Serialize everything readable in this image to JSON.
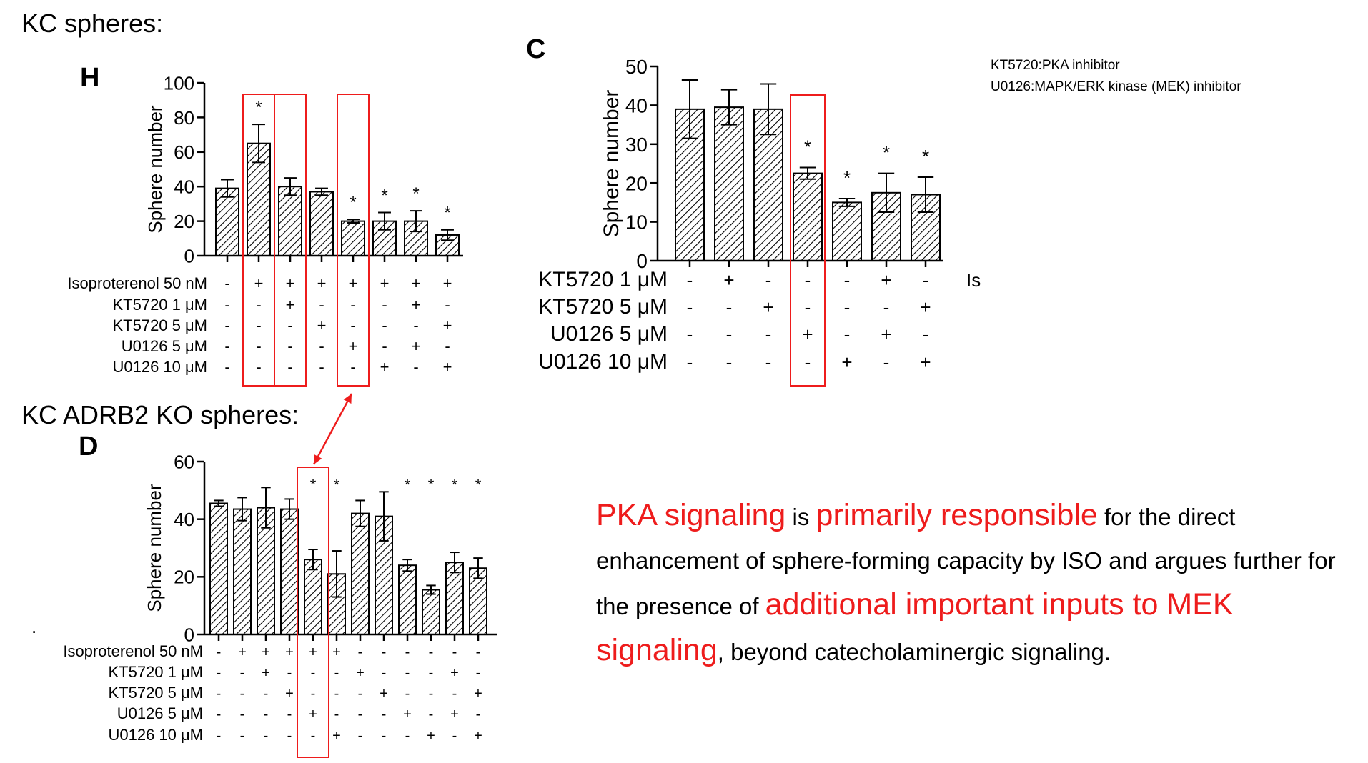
{
  "headings": {
    "kc_spheres": "KC spheres:",
    "kc_adrb2_ko_spheres": "KC ADRB2 KO spheres:",
    "dot": "."
  },
  "notes": {
    "kt5720": "KT5720:PKA inhibitor",
    "u0126": "U0126:MAPK/ERK kinase (MEK) inhibitor"
  },
  "summary": {
    "p1": "PKA signaling",
    "p2": " is ",
    "p3": "primarily responsible",
    "p4": " for the direct enhancement of sphere-forming capacity by ISO and argues further for the presence of ",
    "p5": "additional important inputs to MEK signaling",
    "p6": ", beyond catecholaminergic signaling."
  },
  "colors": {
    "highlight": "#ee1c1c",
    "bars": "#000000",
    "background": "#ffffff"
  },
  "chart_data": [
    {
      "panel": "H",
      "type": "bar",
      "ylabel": "Sphere number",
      "ylim": [
        0,
        100
      ],
      "yticks": [
        0,
        20,
        40,
        60,
        80,
        100
      ],
      "values": [
        39,
        65,
        40,
        37,
        20,
        20,
        20,
        12
      ],
      "errors": [
        5,
        11,
        5,
        2,
        1,
        5,
        6,
        3
      ],
      "significance": [
        "",
        "*",
        "",
        "",
        "*",
        "*",
        "*",
        "*"
      ],
      "conditions": [
        {
          "label": "Isoproterenol 50 nM",
          "signs": [
            "-",
            "+",
            "+",
            "+",
            "+",
            "+",
            "+",
            "+"
          ]
        },
        {
          "label": "KT5720 1 μM",
          "signs": [
            "-",
            "-",
            "+",
            "-",
            "-",
            "-",
            "+",
            "-"
          ]
        },
        {
          "label": "KT5720 5 μM",
          "signs": [
            "-",
            "-",
            "-",
            "+",
            "-",
            "-",
            "-",
            "+"
          ]
        },
        {
          "label": "U0126 5 μM",
          "signs": [
            "-",
            "-",
            "-",
            "-",
            "+",
            "-",
            "+",
            "-"
          ]
        },
        {
          "label": "U0126 10 μM",
          "signs": [
            "-",
            "-",
            "-",
            "-",
            "-",
            "+",
            "-",
            "+"
          ]
        }
      ],
      "highlighted_bars": [
        1,
        2,
        4
      ]
    },
    {
      "panel": "C",
      "type": "bar",
      "ylabel": "Sphere number",
      "ylim": [
        0,
        50
      ],
      "yticks": [
        0,
        10,
        20,
        30,
        40,
        50
      ],
      "values": [
        39,
        39.5,
        39,
        22.5,
        15,
        17.5,
        17
      ],
      "errors": [
        7.5,
        4.5,
        6.5,
        1.5,
        1,
        5,
        4.5
      ],
      "significance": [
        "",
        "",
        "",
        "*",
        "*",
        "*",
        "*"
      ],
      "conditions": [
        {
          "label": "KT5720 1 μM",
          "signs": [
            "-",
            "+",
            "-",
            "-",
            "-",
            "+",
            "-"
          ]
        },
        {
          "label": "KT5720 5 μM",
          "signs": [
            "-",
            "-",
            "+",
            "-",
            "-",
            "-",
            "+"
          ]
        },
        {
          "label": "U0126 5 μM",
          "signs": [
            "-",
            "-",
            "-",
            "+",
            "-",
            "+",
            "-"
          ]
        },
        {
          "label": "U0126 10 μM",
          "signs": [
            "-",
            "-",
            "-",
            "-",
            "+",
            "-",
            "+"
          ]
        }
      ],
      "stray_label": "Is",
      "highlighted_bars": [
        3
      ]
    },
    {
      "panel": "D",
      "type": "bar",
      "ylabel": "Sphere number",
      "ylim": [
        0,
        60
      ],
      "yticks": [
        0,
        20,
        40,
        60
      ],
      "values": [
        45.5,
        43.5,
        44,
        43.5,
        26,
        21,
        42,
        41,
        24,
        15.5,
        25,
        23
      ],
      "errors": [
        1,
        4,
        7,
        3.5,
        3.5,
        8,
        4.5,
        8.5,
        2,
        1.5,
        3.5,
        3.5
      ],
      "significance": [
        "",
        "",
        "",
        "",
        "*",
        "*",
        "",
        "",
        "*",
        "*",
        "*",
        "*"
      ],
      "conditions": [
        {
          "label": "Isoproterenol 50 nM",
          "signs": [
            "-",
            "+",
            "+",
            "+",
            "+",
            "+",
            "-",
            "-",
            "-",
            "-",
            "-",
            "-"
          ]
        },
        {
          "label": "KT5720 1 μM",
          "signs": [
            "-",
            "-",
            "+",
            "-",
            "-",
            "-",
            "+",
            "-",
            "-",
            "-",
            "+",
            "-"
          ]
        },
        {
          "label": "KT5720 5 μM",
          "signs": [
            "-",
            "-",
            "-",
            "+",
            "-",
            "-",
            "-",
            "+",
            "-",
            "-",
            "-",
            "+"
          ]
        },
        {
          "label": "U0126 5 μM",
          "signs": [
            "-",
            "-",
            "-",
            "-",
            "+",
            "-",
            "-",
            "-",
            "+",
            "-",
            "+",
            "-"
          ]
        },
        {
          "label": "U0126 10 μM",
          "signs": [
            "-",
            "-",
            "-",
            "-",
            "-",
            "+",
            "-",
            "-",
            "-",
            "+",
            "-",
            "+"
          ]
        }
      ],
      "highlighted_bars": [
        4
      ]
    }
  ]
}
